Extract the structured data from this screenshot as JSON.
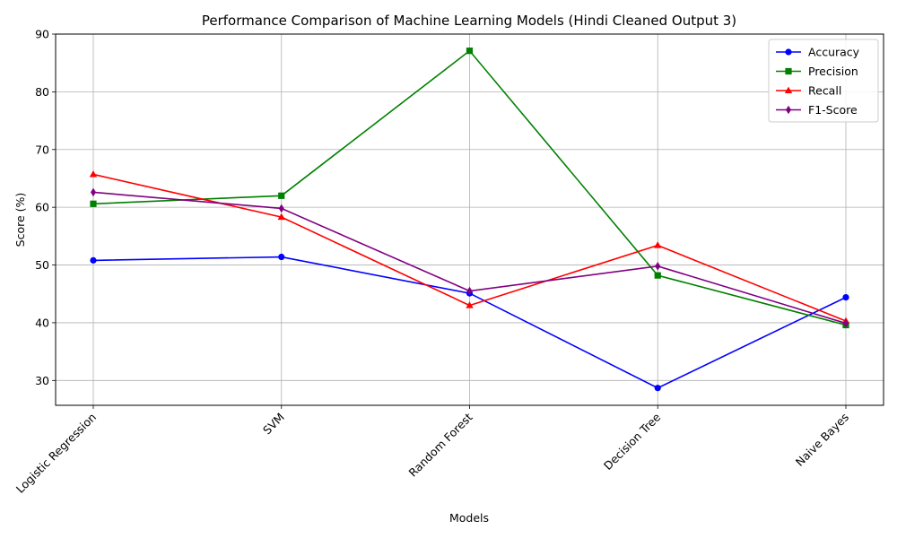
{
  "chart_data": {
    "type": "line",
    "title": "Performance Comparison of Machine Learning Models (Hindi Cleaned Output 3)",
    "xlabel": "Models",
    "ylabel": "Score (%)",
    "categories": [
      "Logistic Regression",
      "SVM",
      "Random Forest",
      "Decision Tree",
      "Naive Bayes"
    ],
    "ylim": [
      25.7,
      90
    ],
    "yticks": [
      30,
      40,
      50,
      60,
      70,
      80,
      90
    ],
    "grid": true,
    "legend_position": "top-right",
    "series": [
      {
        "name": "Accuracy",
        "color": "#0000ff",
        "marker": "circle",
        "values": [
          50.8,
          51.4,
          45.1,
          28.7,
          44.4
        ]
      },
      {
        "name": "Precision",
        "color": "#008000",
        "marker": "square",
        "values": [
          60.6,
          62.0,
          87.1,
          48.2,
          39.6
        ]
      },
      {
        "name": "Recall",
        "color": "#ff0000",
        "marker": "triangle",
        "values": [
          65.7,
          58.3,
          43.0,
          53.4,
          40.3
        ]
      },
      {
        "name": "F1-Score",
        "color": "#800080",
        "marker": "diamond",
        "values": [
          62.6,
          59.8,
          45.5,
          49.8,
          39.9
        ]
      }
    ]
  }
}
